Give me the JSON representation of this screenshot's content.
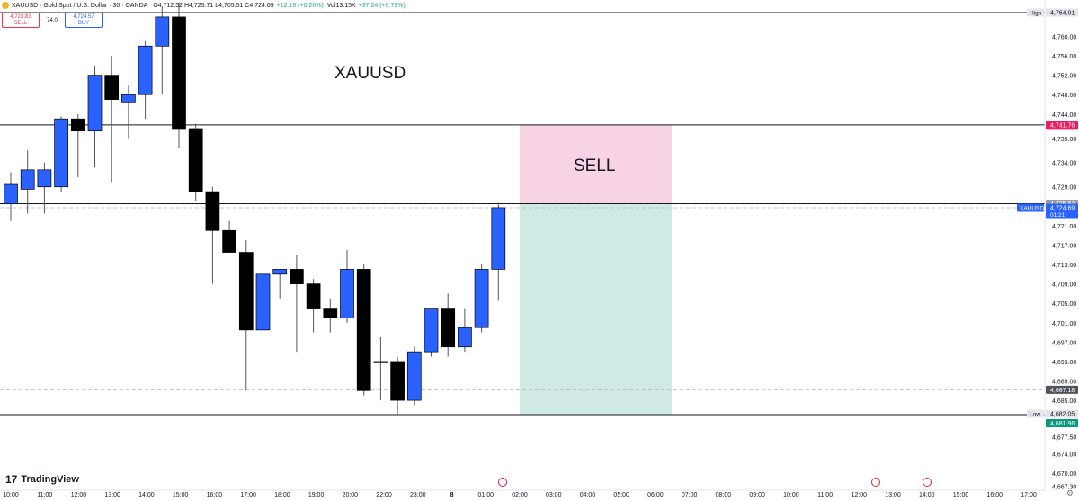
{
  "header": {
    "symbol": "XAUUSD · Gold Spot / U.S. Dollar · 30 · OANDA",
    "ohlc": "O4,712.52 H4,725.71 L4,705.51 C4,724.69",
    "change": "+12.18 (+0.26%)",
    "volume": "Vol13.15K",
    "volume_change": "+37.24 (+0.79%)"
  },
  "trade": {
    "sell_price": "4,723.83",
    "sell_label": "SELL",
    "spread": "74.0",
    "buy_price": "4,724.57",
    "buy_label": "BUY"
  },
  "brand": {
    "name": "TradingView",
    "mark": "17"
  },
  "colors": {
    "up": "#2962ff",
    "down": "#000000",
    "sell_zone": "#f8d3e3",
    "profit_zone": "#cfeae4",
    "red_tag": "#e91e63",
    "symbol_tag": "#2962ff",
    "low_tag": "#089981"
  },
  "chart_data": {
    "type": "candlestick",
    "title": "",
    "annotations": [
      {
        "text": "XAUUSD",
        "kind": "label"
      },
      {
        "text": "SELL",
        "kind": "zone-label"
      }
    ],
    "x_axis": {
      "ticks": [
        "10:00",
        "11:00",
        "12:00",
        "13:00",
        "14:00",
        "15:00",
        "16:00",
        "17:00",
        "18:00",
        "19:00",
        "20:00",
        "22:00",
        "23:00",
        "8",
        "01:00",
        "02:00",
        "03:00",
        "04:00",
        "05:00",
        "06:00",
        "07:00",
        "08:00",
        "09:00",
        "10:00",
        "11:00",
        "12:00",
        "13:00",
        "14:00",
        "15:00",
        "16:00",
        "17:00"
      ]
    },
    "y_axis": {
      "ylim": [
        4667.3,
        4767.0
      ],
      "ticks": [
        "4,760.00",
        "4,756.00",
        "4,752.00",
        "4,748.00",
        "4,744.00",
        "4,739.00",
        "4,734.00",
        "4,729.00",
        "4,721.00",
        "4,717.00",
        "4,713.00",
        "4,709.00",
        "4,705.00",
        "4,701.00",
        "4,697.00",
        "4,693.00",
        "4,689.00",
        "4,685.00",
        "4,677.50",
        "4,674.00",
        "4,670.00",
        "4,667.30"
      ],
      "tick_values": [
        4760,
        4756,
        4752,
        4748,
        4744,
        4739,
        4734,
        4729,
        4721,
        4717,
        4713,
        4709,
        4705,
        4701,
        4697,
        4693,
        4689,
        4685,
        4677.5,
        4674,
        4670,
        4667.3
      ]
    },
    "price_tags": [
      {
        "text": "High",
        "value": "4,764.91",
        "price": 4764.91,
        "style": "high"
      },
      {
        "text": "",
        "value": "4,741.76",
        "price": 4741.76,
        "style": "red"
      },
      {
        "text": "",
        "value": "4,725.53",
        "price": 4725.53,
        "style": "grey"
      },
      {
        "text": "XAUUSD",
        "value": "4,724.69",
        "price": 4724.69,
        "style": "symbol",
        "countdown": "01:21"
      },
      {
        "text": "",
        "value": "4,687.18",
        "price": 4687.18,
        "style": "dark"
      },
      {
        "text": "Low",
        "value": "4,682.05",
        "price": 4682.05,
        "style": "low-label"
      },
      {
        "text": "",
        "value": "4,681.96",
        "price": 4681.96,
        "style": "green"
      }
    ],
    "horizontal_lines": [
      4764.91,
      4741.76,
      4725.53,
      4682.05
    ],
    "dashed_lines": [
      4724.69,
      4687.18
    ],
    "position": {
      "type": "short",
      "entry": 4725.53,
      "stop": 4741.76,
      "target": 4682.05,
      "start_time": "02:00",
      "end_time": "06:30"
    },
    "candles": [
      {
        "t": "10:00",
        "o": 4725.5,
        "h": 4732,
        "l": 4722,
        "c": 4729.5
      },
      {
        "t": "10:30",
        "o": 4728.5,
        "h": 4736.5,
        "l": 4723.5,
        "c": 4732.5
      },
      {
        "t": "11:00",
        "o": 4729,
        "h": 4734,
        "l": 4723.5,
        "c": 4732.5
      },
      {
        "t": "11:30",
        "o": 4729,
        "h": 4743.5,
        "l": 4728,
        "c": 4743
      },
      {
        "t": "12:00",
        "o": 4743,
        "h": 4744,
        "l": 4731,
        "c": 4740.5
      },
      {
        "t": "12:30",
        "o": 4740.5,
        "h": 4754,
        "l": 4733,
        "c": 4752
      },
      {
        "t": "13:00",
        "o": 4752,
        "h": 4756,
        "l": 4730,
        "c": 4747
      },
      {
        "t": "13:30",
        "o": 4746.5,
        "h": 4750,
        "l": 4739,
        "c": 4748
      },
      {
        "t": "14:00",
        "o": 4748,
        "h": 4759,
        "l": 4743,
        "c": 4758
      },
      {
        "t": "14:30",
        "o": 4758,
        "h": 4766,
        "l": 4748,
        "c": 4764
      },
      {
        "t": "15:00",
        "o": 4764,
        "h": 4767,
        "l": 4737,
        "c": 4741
      },
      {
        "t": "15:30",
        "o": 4741,
        "h": 4742,
        "l": 4726,
        "c": 4728
      },
      {
        "t": "16:00",
        "o": 4728,
        "h": 4729,
        "l": 4709,
        "c": 4720
      },
      {
        "t": "16:30",
        "o": 4720,
        "h": 4722,
        "l": 4716,
        "c": 4715.5
      },
      {
        "t": "17:00",
        "o": 4715.5,
        "h": 4718,
        "l": 4687,
        "c": 4699.5
      },
      {
        "t": "17:30",
        "o": 4699.5,
        "h": 4713,
        "l": 4693,
        "c": 4711
      },
      {
        "t": "18:00",
        "o": 4711,
        "h": 4712,
        "l": 4706,
        "c": 4712
      },
      {
        "t": "18:30",
        "o": 4712,
        "h": 4715,
        "l": 4695,
        "c": 4709
      },
      {
        "t": "19:00",
        "o": 4709,
        "h": 4710,
        "l": 4699,
        "c": 4704
      },
      {
        "t": "19:30",
        "o": 4704,
        "h": 4706,
        "l": 4699,
        "c": 4702
      },
      {
        "t": "20:00",
        "o": 4702,
        "h": 4716,
        "l": 4701,
        "c": 4712
      },
      {
        "t": "21:00",
        "o": 4712,
        "h": 4713,
        "l": 4686,
        "c": 4687
      },
      {
        "t": "22:00",
        "o": 4693,
        "h": 4698,
        "l": 4685,
        "c": 4693
      },
      {
        "t": "22:30",
        "o": 4693,
        "h": 4694,
        "l": 4682,
        "c": 4685
      },
      {
        "t": "23:00",
        "o": 4685,
        "h": 4696,
        "l": 4684,
        "c": 4695
      },
      {
        "t": "23:30",
        "o": 4695,
        "h": 4704,
        "l": 4694,
        "c": 4704
      },
      {
        "t": "00:00",
        "o": 4704,
        "h": 4707,
        "l": 4694,
        "c": 4696
      },
      {
        "t": "00:30",
        "o": 4696,
        "h": 4704,
        "l": 4695,
        "c": 4700
      },
      {
        "t": "01:00",
        "o": 4700,
        "h": 4713,
        "l": 4699,
        "c": 4712
      },
      {
        "t": "01:30",
        "o": 4712,
        "h": 4725.7,
        "l": 4705.5,
        "c": 4724.7
      }
    ]
  }
}
